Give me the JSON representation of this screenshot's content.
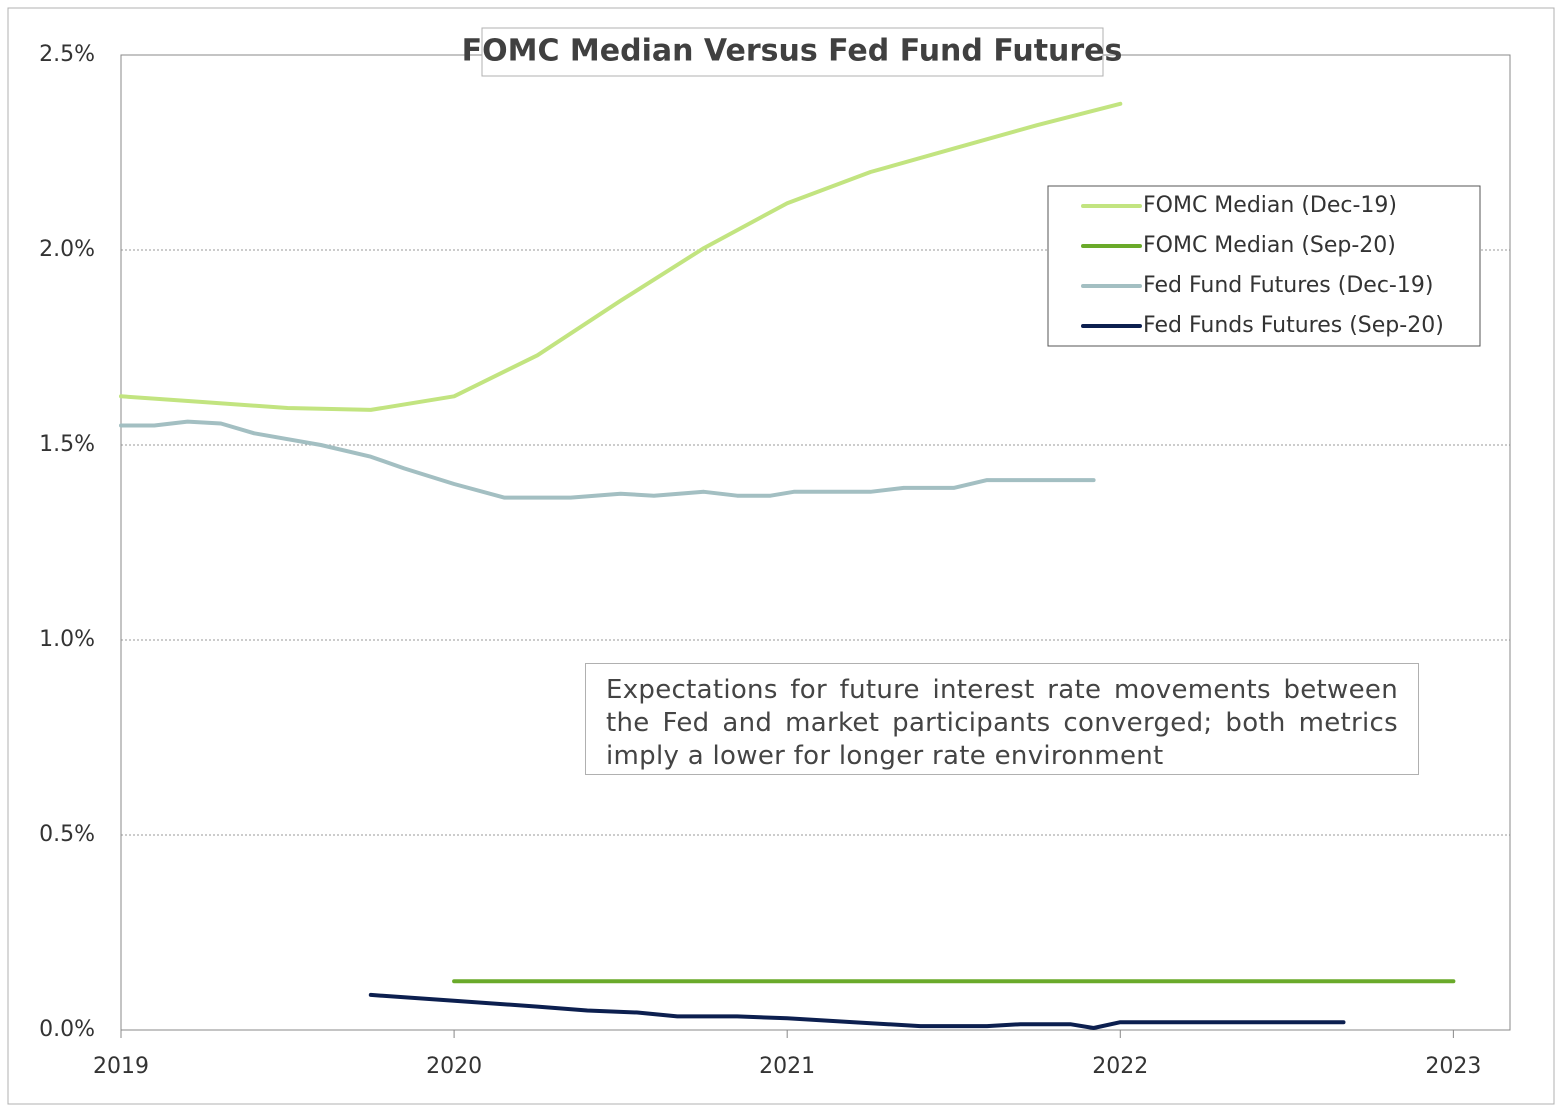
{
  "chart_data": {
    "type": "line",
    "title": "FOMC Median Versus Fed Fund Futures",
    "annotation": "Expectations for future interest rate movements between the Fed and market participants converged; both metrics imply a lower for longer rate environment",
    "xlim": [
      2019,
      2023.17
    ],
    "xticks": [
      2019,
      2020,
      2021,
      2022,
      2023
    ],
    "ylim": [
      0,
      2.5
    ],
    "yticks": [
      {
        "value": 0,
        "label": "0.0%"
      },
      {
        "value": 0.5,
        "label": "0.5%"
      },
      {
        "value": 1,
        "label": "1.0%"
      },
      {
        "value": 1.5,
        "label": "1.5%"
      },
      {
        "value": 2,
        "label": "2.0%"
      },
      {
        "value": 2.5,
        "label": "2.5%"
      }
    ],
    "grid": true,
    "legend": "upper right",
    "series": [
      {
        "name": "FOMC Median (Dec-19)",
        "color": "#c2e480",
        "x": [
          2019,
          2019.25,
          2019.5,
          2019.75,
          2020,
          2020.25,
          2020.5,
          2020.75,
          2021,
          2021.25,
          2021.5,
          2021.75,
          2022
        ],
        "values": [
          1.625,
          1.61,
          1.595,
          1.59,
          1.625,
          1.73,
          1.87,
          2.005,
          2.12,
          2.2,
          2.26,
          2.32,
          2.375
        ]
      },
      {
        "name": "FOMC Median (Sep-20)",
        "color": "#6aaa2a",
        "x": [
          2020,
          2023
        ],
        "values": [
          0.125,
          0.125
        ]
      },
      {
        "name": "Fed Fund Futures (Dec-19)",
        "color": "#a3bfc2",
        "x": [
          2019,
          2019.1,
          2019.2,
          2019.3,
          2019.4,
          2019.6,
          2019.75,
          2019.85,
          2020,
          2020.15,
          2020.35,
          2020.5,
          2020.6,
          2020.75,
          2020.85,
          2020.95,
          2021.02,
          2021.25,
          2021.35,
          2021.5,
          2021.6,
          2021.92
        ],
        "values": [
          1.55,
          1.55,
          1.56,
          1.555,
          1.53,
          1.5,
          1.47,
          1.44,
          1.4,
          1.365,
          1.365,
          1.375,
          1.37,
          1.38,
          1.37,
          1.37,
          1.38,
          1.38,
          1.39,
          1.39,
          1.41,
          1.41
        ]
      },
      {
        "name": "Fed Funds Futures (Sep-20)",
        "color": "#0c1f4f",
        "x": [
          2019.75,
          2020,
          2020.25,
          2020.4,
          2020.55,
          2020.67,
          2020.85,
          2021,
          2021.2,
          2021.4,
          2021.6,
          2021.7,
          2021.85,
          2021.92,
          2022,
          2022.3,
          2022.67
        ],
        "values": [
          0.09,
          0.075,
          0.06,
          0.05,
          0.045,
          0.035,
          0.035,
          0.03,
          0.02,
          0.01,
          0.01,
          0.015,
          0.015,
          0.005,
          0.02,
          0.02,
          0.02
        ]
      }
    ]
  }
}
